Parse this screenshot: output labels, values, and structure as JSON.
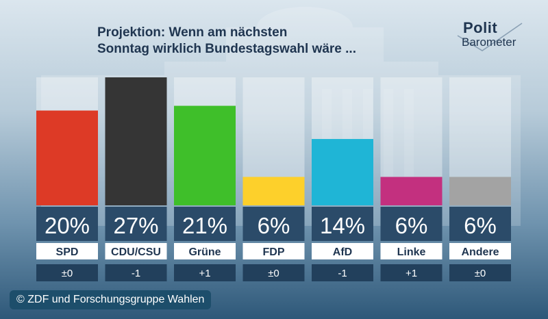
{
  "title_line1": "Projektion: Wenn am nächsten",
  "title_line2": "Sonntag wirklich Bundestagswahl wäre ...",
  "logo": {
    "line1": "Polit",
    "line2": "Barometer"
  },
  "copyright": "© ZDF und Forschungsgruppe Wahlen",
  "chart_data": {
    "type": "bar",
    "categories": [
      "SPD",
      "CDU/CSU",
      "Grüne",
      "FDP",
      "AfD",
      "Linke",
      "Andere"
    ],
    "values": [
      20,
      27,
      21,
      6,
      14,
      6,
      6
    ],
    "value_labels": [
      "20%",
      "27%",
      "21%",
      "6%",
      "14%",
      "6%",
      "6%"
    ],
    "changes": [
      "±0",
      "-1",
      "+1",
      "±0",
      "-1",
      "+1",
      "±0"
    ],
    "colors": [
      "#dd3a26",
      "#353535",
      "#3fbf2a",
      "#fdd02b",
      "#1fb5d6",
      "#c3307f",
      "#a3a3a3"
    ],
    "ylim": [
      0,
      27
    ],
    "grid": false,
    "legend": "none"
  }
}
